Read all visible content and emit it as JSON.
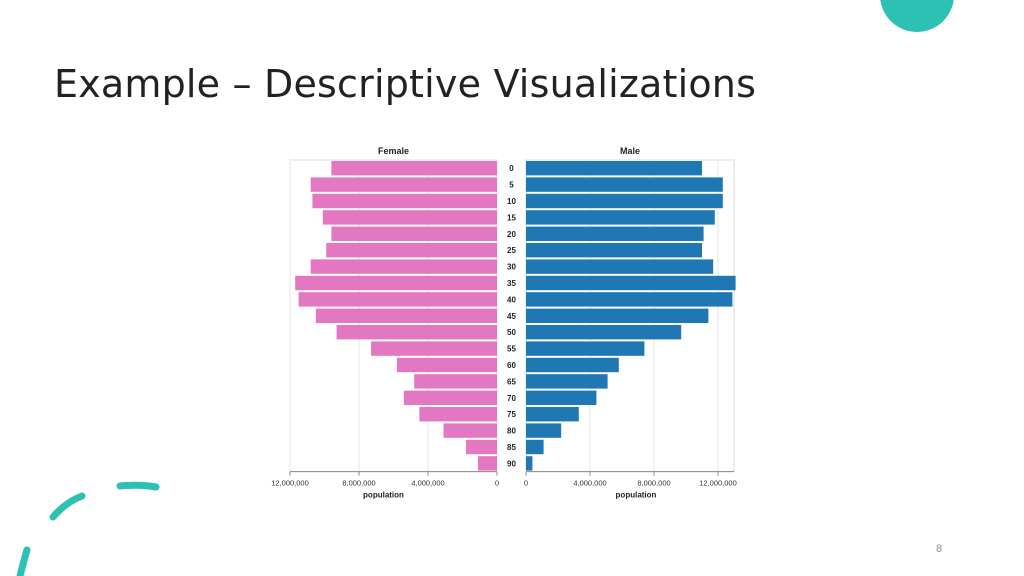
{
  "slide": {
    "title": "Example – Descriptive Visualizations",
    "page_number": "8"
  },
  "colors": {
    "female": "#e377c2",
    "male": "#1f77b4",
    "accent": "#2cc1b2"
  },
  "chart_data": {
    "type": "bar",
    "subtype": "population-pyramid",
    "categories": [
      "0",
      "5",
      "10",
      "15",
      "20",
      "25",
      "30",
      "35",
      "40",
      "45",
      "50",
      "55",
      "60",
      "65",
      "70",
      "75",
      "80",
      "85",
      "90"
    ],
    "series": [
      {
        "name": "Female",
        "values": [
          9600000,
          10800000,
          10700000,
          10100000,
          9600000,
          9900000,
          10800000,
          11700000,
          11500000,
          10500000,
          9300000,
          7300000,
          5800000,
          4800000,
          5400000,
          4500000,
          3100000,
          1800000,
          1100000
        ]
      },
      {
        "name": "Male",
        "values": [
          11000000,
          12300000,
          12300000,
          11800000,
          11100000,
          11000000,
          11700000,
          13100000,
          12900000,
          11400000,
          9700000,
          7400000,
          5800000,
          5100000,
          4400000,
          3300000,
          2200000,
          1100000,
          400000
        ]
      }
    ],
    "female_axis": {
      "label": "population",
      "ticks": [
        "12,000,000",
        "8,000,000",
        "4,000,000",
        "0"
      ],
      "max": 12000000
    },
    "male_axis": {
      "label": "population",
      "ticks": [
        "0",
        "4,000,000",
        "8,000,000",
        "12,000,000"
      ],
      "max": 13000000
    },
    "panel_titles": {
      "female": "Female",
      "male": "Male"
    },
    "grid": true
  }
}
